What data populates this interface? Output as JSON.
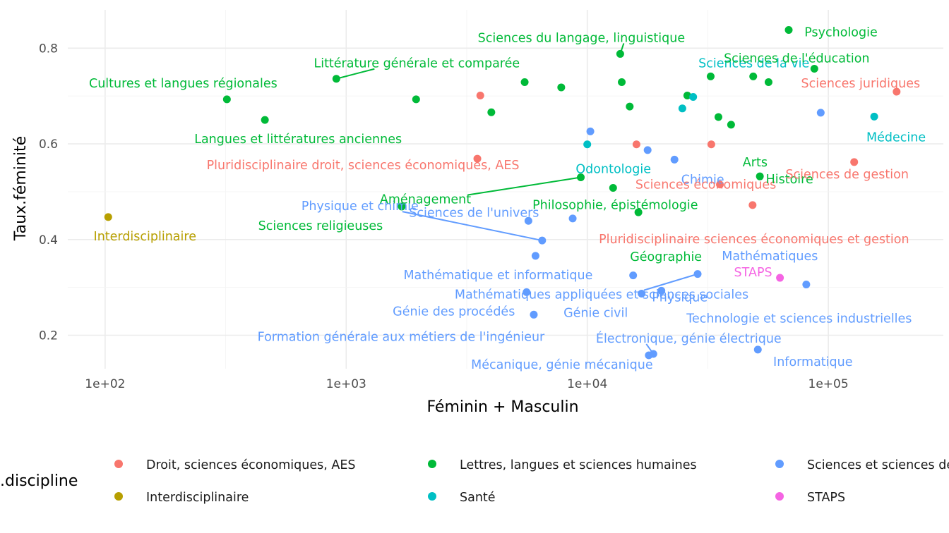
{
  "chart_data": {
    "type": "scatter",
    "title": "",
    "xlabel": "Féminin + Masculin",
    "ylabel": "Taux.féminité",
    "x_scale": "log10",
    "xlim": [
      70,
      300000
    ],
    "ylim": [
      0.13,
      0.88
    ],
    "x_ticks": [
      {
        "value": 100,
        "label": "1e+02"
      },
      {
        "value": 1000,
        "label": "1e+03"
      },
      {
        "value": 10000,
        "label": "1e+04"
      },
      {
        "value": 100000,
        "label": "1e+05"
      }
    ],
    "y_ticks": [
      {
        "value": 0.2,
        "label": "0.2"
      },
      {
        "value": 0.4,
        "label": "0.4"
      },
      {
        "value": 0.6,
        "label": "0.6"
      },
      {
        "value": 0.8,
        "label": "0.8"
      }
    ],
    "grid": true,
    "legend": {
      "title": ".discipline",
      "position": "bottom",
      "entries": [
        {
          "name": "Droit, sciences économiques, AES",
          "color": "#F8766D"
        },
        {
          "name": "Lettres, langues et sciences humaines",
          "color": "#00BA38"
        },
        {
          "name": "Sciences et sciences de l'ingénieur",
          "color": "#619CFF"
        },
        {
          "name": "Interdisciplinaire",
          "color": "#B79F00"
        },
        {
          "name": "Santé",
          "color": "#00BFC4"
        },
        {
          "name": "STAPS",
          "color": "#F564E3"
        }
      ]
    },
    "points": [
      {
        "x": 103,
        "y": 0.447,
        "g": "Interdisciplinaire",
        "label": "Interdisciplinaire"
      },
      {
        "x": 320,
        "y": 0.693,
        "g": "Lettres, langues et sciences humaines",
        "label": "Cultures et langues régionales"
      },
      {
        "x": 460,
        "y": 0.65,
        "g": "Lettres, langues et sciences humaines",
        "label": "Langues et littératures anciennes"
      },
      {
        "x": 910,
        "y": 0.736,
        "g": "Lettres, langues et sciences humaines",
        "label": "Littérature générale et comparée"
      },
      {
        "x": 1700,
        "y": 0.469,
        "g": "Lettres, langues et sciences humaines",
        "label": "Sciences religieuses"
      },
      {
        "x": 1950,
        "y": 0.693,
        "g": "Lettres, langues et sciences humaines",
        "label": ""
      },
      {
        "x": 3500,
        "y": 0.569,
        "g": "Droit, sciences économiques, AES",
        "label": "Pluridisciplinaire droit, sciences économiques, AES"
      },
      {
        "x": 3600,
        "y": 0.701,
        "g": "Droit, sciences économiques, AES",
        "label": ""
      },
      {
        "x": 4000,
        "y": 0.666,
        "g": "Lettres, langues et sciences humaines",
        "label": ""
      },
      {
        "x": 5500,
        "y": 0.729,
        "g": "Lettres, langues et sciences humaines",
        "label": ""
      },
      {
        "x": 5600,
        "y": 0.29,
        "g": "Sciences et sciences de l'ingénieur",
        "label": "Génie des procédés"
      },
      {
        "x": 5700,
        "y": 0.439,
        "g": "Sciences et sciences de l'ingénieur",
        "label": "Sciences de l'univers"
      },
      {
        "x": 6000,
        "y": 0.243,
        "g": "Sciences et sciences de l'ingénieur",
        "label": "Formation générale aux métiers de l'ingénieur"
      },
      {
        "x": 6100,
        "y": 0.366,
        "g": "Sciences et sciences de l'ingénieur",
        "label": "Mathématique et informatique"
      },
      {
        "x": 6500,
        "y": 0.398,
        "g": "Sciences et sciences de l'ingénieur",
        "label": "Physique et chimie"
      },
      {
        "x": 7800,
        "y": 0.718,
        "g": "Lettres, langues et sciences humaines",
        "label": ""
      },
      {
        "x": 8700,
        "y": 0.444,
        "g": "Sciences et sciences de l'ingénieur",
        "label": ""
      },
      {
        "x": 9400,
        "y": 0.53,
        "g": "Lettres, langues et sciences humaines",
        "label": "Aménagement"
      },
      {
        "x": 10000,
        "y": 0.599,
        "g": "Santé",
        "label": "Odontologie"
      },
      {
        "x": 10300,
        "y": 0.626,
        "g": "Sciences et sciences de l'ingénieur",
        "label": ""
      },
      {
        "x": 12800,
        "y": 0.508,
        "g": "Lettres, langues et sciences humaines",
        "label": "Philosophie, épistémologie"
      },
      {
        "x": 13700,
        "y": 0.788,
        "g": "Lettres, langues et sciences humaines",
        "label": "Sciences du langage, linguistique"
      },
      {
        "x": 13900,
        "y": 0.729,
        "g": "Lettres, langues et sciences humaines",
        "label": ""
      },
      {
        "x": 15000,
        "y": 0.678,
        "g": "Lettres, langues et sciences humaines",
        "label": ""
      },
      {
        "x": 15500,
        "y": 0.325,
        "g": "Sciences et sciences de l'ingénieur",
        "label": "Génie civil"
      },
      {
        "x": 16000,
        "y": 0.599,
        "g": "Droit, sciences économiques, AES",
        "label": ""
      },
      {
        "x": 16300,
        "y": 0.457,
        "g": "Lettres, langues et sciences humaines",
        "label": "Géographie"
      },
      {
        "x": 16800,
        "y": 0.287,
        "g": "Sciences et sciences de l'ingénieur",
        "label": ""
      },
      {
        "x": 17800,
        "y": 0.587,
        "g": "Sciences et sciences de l'ingénieur",
        "label": ""
      },
      {
        "x": 18000,
        "y": 0.158,
        "g": "Sciences et sciences de l'ingénieur",
        "label": "Mécanique, génie mécanique"
      },
      {
        "x": 18800,
        "y": 0.161,
        "g": "Sciences et sciences de l'ingénieur",
        "label": "Électronique, génie électrique"
      },
      {
        "x": 20300,
        "y": 0.293,
        "g": "Sciences et sciences de l'ingénieur",
        "label": "Physique"
      },
      {
        "x": 23000,
        "y": 0.567,
        "g": "Sciences et sciences de l'ingénieur",
        "label": "Chimie"
      },
      {
        "x": 24800,
        "y": 0.674,
        "g": "Santé",
        "label": ""
      },
      {
        "x": 26000,
        "y": 0.701,
        "g": "Lettres, langues et sciences humaines",
        "label": ""
      },
      {
        "x": 27500,
        "y": 0.698,
        "g": "Santé",
        "label": "Sciences de la vie"
      },
      {
        "x": 28700,
        "y": 0.328,
        "g": "Sciences et sciences de l'ingénieur",
        "label": "Mathématiques appliquées et sciences sociales"
      },
      {
        "x": 32500,
        "y": 0.741,
        "g": "Lettres, langues et sciences humaines",
        "label": ""
      },
      {
        "x": 32700,
        "y": 0.599,
        "g": "Droit, sciences économiques, AES",
        "label": ""
      },
      {
        "x": 35000,
        "y": 0.656,
        "g": "Lettres, langues et sciences humaines",
        "label": ""
      },
      {
        "x": 35500,
        "y": 0.515,
        "g": "Droit, sciences économiques, AES",
        "label": "Sciences économiques"
      },
      {
        "x": 39500,
        "y": 0.64,
        "g": "Lettres, langues et sciences humaines",
        "label": "Arts"
      },
      {
        "x": 48500,
        "y": 0.472,
        "g": "Droit, sciences économiques, AES",
        "label": "Pluridisciplinaire sciences économiques et gestion"
      },
      {
        "x": 48800,
        "y": 0.741,
        "g": "Lettres, langues et sciences humaines",
        "label": ""
      },
      {
        "x": 51000,
        "y": 0.17,
        "g": "Sciences et sciences de l'ingénieur",
        "label": "Informatique"
      },
      {
        "x": 52000,
        "y": 0.532,
        "g": "Lettres, langues et sciences humaines",
        "label": "Histoire"
      },
      {
        "x": 56500,
        "y": 0.729,
        "g": "Lettres, langues et sciences humaines",
        "label": ""
      },
      {
        "x": 63000,
        "y": 0.32,
        "g": "STAPS",
        "label": "STAPS"
      },
      {
        "x": 68500,
        "y": 0.838,
        "g": "Lettres, langues et sciences humaines",
        "label": "Psychologie"
      },
      {
        "x": 81000,
        "y": 0.306,
        "g": "Sciences et sciences de l'ingénieur",
        "label": "Technologie et sciences industrielles"
      },
      {
        "x": 87500,
        "y": 0.757,
        "g": "Lettres, langues et sciences humaines",
        "label": "Sciences de l'éducation"
      },
      {
        "x": 93000,
        "y": 0.665,
        "g": "Sciences et sciences de l'ingénieur",
        "label": "Mathématiques"
      },
      {
        "x": 128000,
        "y": 0.562,
        "g": "Droit, sciences économiques, AES",
        "label": "Sciences de gestion"
      },
      {
        "x": 155000,
        "y": 0.657,
        "g": "Santé",
        "label": "Médecine"
      },
      {
        "x": 192000,
        "y": 0.709,
        "g": "Droit, sciences économiques, AES",
        "label": "Sciences juridiques"
      }
    ]
  }
}
